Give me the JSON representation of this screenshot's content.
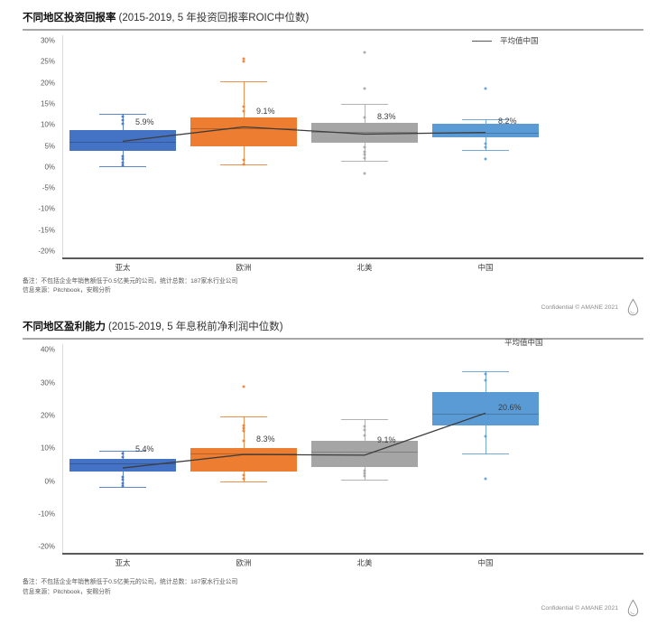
{
  "footer": {
    "confidential": "Confidential © AMANE 2021"
  },
  "chart_data": [
    {
      "type": "box",
      "title": "不同地区投资回报率",
      "subtitle": "(2015-2019, 5 年投资回报率ROIC中位数)",
      "legend_label": "平均值中国",
      "legend_position": "top-right",
      "categories": [
        "亚太",
        "欧洲",
        "北美",
        "中国"
      ],
      "category_keys": [
        "apac",
        "europe",
        "north-america",
        "china"
      ],
      "ylim": [
        -20,
        30
      ],
      "ytick_step": 5,
      "ytick_format": "percent",
      "grid": false,
      "series_colors": [
        "#4472C4",
        "#ED7D31",
        "#A5A5A5",
        "#5B9BD5"
      ],
      "mean_line_color": "#3d3d3d",
      "boxes": [
        {
          "region": "亚太",
          "median_label": "5.9%",
          "median": 5.9,
          "q1": 3.9,
          "q3": 8.8,
          "whisker_low": 0.2,
          "whisker_high": 12.6,
          "points": [
            12.0,
            11.2,
            10.3,
            2.6,
            1.8,
            1.0,
            0.3
          ]
        },
        {
          "region": "欧洲",
          "median_label": "9.1%",
          "median": 9.1,
          "q1": 4.9,
          "q3": 11.7,
          "whisker_low": 0.6,
          "whisker_high": 20.3,
          "points": [
            25.8,
            25.0,
            14.3,
            13.3,
            1.6,
            0.7
          ]
        },
        {
          "region": "北美",
          "median_label": "8.3%",
          "median": 8.3,
          "q1": 5.8,
          "q3": 10.5,
          "whisker_low": 1.5,
          "whisker_high": 15.0,
          "points": [
            27.2,
            18.6,
            11.7,
            4.6,
            3.7,
            2.9,
            2.1,
            -1.6
          ]
        },
        {
          "region": "中国",
          "median_label": "8.2%",
          "median": 8.2,
          "q1": 7.1,
          "q3": 10.3,
          "whisker_low": 4.1,
          "whisker_high": 11.4,
          "points": [
            18.7,
            5.6,
            4.7,
            1.9
          ]
        }
      ],
      "mean_line": [
        6.1,
        9.5,
        7.8,
        8.2
      ],
      "footnote_line1": "备注：不包括企业年销售额低于0.5亿美元的公司，统计总数：187家水行业公司",
      "footnote_line2": "信息来源：Pitchbook，安赐分析"
    },
    {
      "type": "box",
      "title": "不同地区盈利能力",
      "subtitle": "(2015-2019, 5 年息税前净利润中位数)",
      "legend_label": "平均值中国",
      "legend_position": "top-right",
      "categories": [
        "亚太",
        "欧洲",
        "北美",
        "中国"
      ],
      "category_keys": [
        "apac",
        "europe",
        "north-america",
        "china"
      ],
      "ylim": [
        -20,
        40
      ],
      "ytick_step": 10,
      "ytick_format": "percent",
      "grid": false,
      "series_colors": [
        "#4472C4",
        "#ED7D31",
        "#A5A5A5",
        "#5B9BD5"
      ],
      "mean_line_color": "#3d3d3d",
      "boxes": [
        {
          "region": "亚太",
          "median_label": "5.4%",
          "median": 5.4,
          "q1": 2.8,
          "q3": 6.7,
          "whisker_low": -1.7,
          "whisker_high": 9.2,
          "points": [
            8.3,
            7.4,
            1.2,
            0.4,
            -0.7,
            -1.6
          ]
        },
        {
          "region": "欧洲",
          "median_label": "8.3%",
          "median": 8.3,
          "q1": 2.8,
          "q3": 10.1,
          "whisker_low": 0.0,
          "whisker_high": 19.8,
          "points": [
            28.9,
            16.9,
            16.0,
            15.2,
            12.4,
            1.7,
            0.8
          ]
        },
        {
          "region": "北美",
          "median_label": "9.1%",
          "median": 9.1,
          "q1": 4.2,
          "q3": 12.3,
          "whisker_low": 0.3,
          "whisker_high": 18.9,
          "points": [
            16.6,
            15.7,
            13.9,
            3.3,
            2.4,
            1.5
          ]
        },
        {
          "region": "中国",
          "median_label": "20.6%",
          "median": 20.6,
          "q1": 17.0,
          "q3": 27.1,
          "whisker_low": 8.4,
          "whisker_high": 33.5,
          "points": [
            32.8,
            30.8,
            13.7,
            0.6
          ]
        }
      ],
      "mean_line": [
        3.9,
        8.0,
        7.8,
        20.6
      ],
      "footnote_line1": "备注：不包括企业年销售额低于0.5亿美元的公司，统计总数：187家水行业公司",
      "footnote_line2": "信息来源：Pitchbook，安赐分析"
    }
  ]
}
